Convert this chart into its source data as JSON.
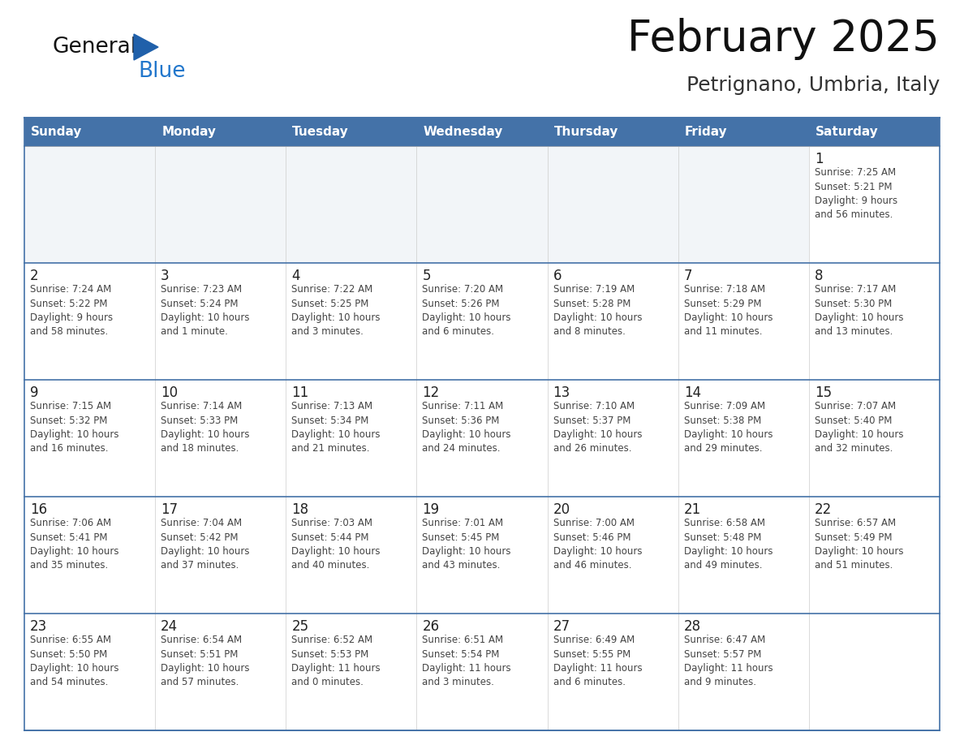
{
  "title": "February 2025",
  "subtitle": "Petrignano, Umbria, Italy",
  "days_of_week": [
    "Sunday",
    "Monday",
    "Tuesday",
    "Wednesday",
    "Thursday",
    "Friday",
    "Saturday"
  ],
  "header_bg": "#4472a8",
  "header_text": "#ffffff",
  "cell_bg": "#ffffff",
  "cell_bg_alt": "#f0f4f8",
  "cell_text": "#333333",
  "border_color": "#4472a8",
  "row_line_color": "#4472a8",
  "day_number_color": "#222222",
  "info_text_color": "#444444",
  "logo_general_color": "#111111",
  "logo_blue_color": "#2277cc",
  "logo_triangle_color": "#2060aa",
  "calendar_data": [
    [
      {
        "day": null,
        "info": null
      },
      {
        "day": null,
        "info": null
      },
      {
        "day": null,
        "info": null
      },
      {
        "day": null,
        "info": null
      },
      {
        "day": null,
        "info": null
      },
      {
        "day": null,
        "info": null
      },
      {
        "day": 1,
        "info": "Sunrise: 7:25 AM\nSunset: 5:21 PM\nDaylight: 9 hours\nand 56 minutes."
      }
    ],
    [
      {
        "day": 2,
        "info": "Sunrise: 7:24 AM\nSunset: 5:22 PM\nDaylight: 9 hours\nand 58 minutes."
      },
      {
        "day": 3,
        "info": "Sunrise: 7:23 AM\nSunset: 5:24 PM\nDaylight: 10 hours\nand 1 minute."
      },
      {
        "day": 4,
        "info": "Sunrise: 7:22 AM\nSunset: 5:25 PM\nDaylight: 10 hours\nand 3 minutes."
      },
      {
        "day": 5,
        "info": "Sunrise: 7:20 AM\nSunset: 5:26 PM\nDaylight: 10 hours\nand 6 minutes."
      },
      {
        "day": 6,
        "info": "Sunrise: 7:19 AM\nSunset: 5:28 PM\nDaylight: 10 hours\nand 8 minutes."
      },
      {
        "day": 7,
        "info": "Sunrise: 7:18 AM\nSunset: 5:29 PM\nDaylight: 10 hours\nand 11 minutes."
      },
      {
        "day": 8,
        "info": "Sunrise: 7:17 AM\nSunset: 5:30 PM\nDaylight: 10 hours\nand 13 minutes."
      }
    ],
    [
      {
        "day": 9,
        "info": "Sunrise: 7:15 AM\nSunset: 5:32 PM\nDaylight: 10 hours\nand 16 minutes."
      },
      {
        "day": 10,
        "info": "Sunrise: 7:14 AM\nSunset: 5:33 PM\nDaylight: 10 hours\nand 18 minutes."
      },
      {
        "day": 11,
        "info": "Sunrise: 7:13 AM\nSunset: 5:34 PM\nDaylight: 10 hours\nand 21 minutes."
      },
      {
        "day": 12,
        "info": "Sunrise: 7:11 AM\nSunset: 5:36 PM\nDaylight: 10 hours\nand 24 minutes."
      },
      {
        "day": 13,
        "info": "Sunrise: 7:10 AM\nSunset: 5:37 PM\nDaylight: 10 hours\nand 26 minutes."
      },
      {
        "day": 14,
        "info": "Sunrise: 7:09 AM\nSunset: 5:38 PM\nDaylight: 10 hours\nand 29 minutes."
      },
      {
        "day": 15,
        "info": "Sunrise: 7:07 AM\nSunset: 5:40 PM\nDaylight: 10 hours\nand 32 minutes."
      }
    ],
    [
      {
        "day": 16,
        "info": "Sunrise: 7:06 AM\nSunset: 5:41 PM\nDaylight: 10 hours\nand 35 minutes."
      },
      {
        "day": 17,
        "info": "Sunrise: 7:04 AM\nSunset: 5:42 PM\nDaylight: 10 hours\nand 37 minutes."
      },
      {
        "day": 18,
        "info": "Sunrise: 7:03 AM\nSunset: 5:44 PM\nDaylight: 10 hours\nand 40 minutes."
      },
      {
        "day": 19,
        "info": "Sunrise: 7:01 AM\nSunset: 5:45 PM\nDaylight: 10 hours\nand 43 minutes."
      },
      {
        "day": 20,
        "info": "Sunrise: 7:00 AM\nSunset: 5:46 PM\nDaylight: 10 hours\nand 46 minutes."
      },
      {
        "day": 21,
        "info": "Sunrise: 6:58 AM\nSunset: 5:48 PM\nDaylight: 10 hours\nand 49 minutes."
      },
      {
        "day": 22,
        "info": "Sunrise: 6:57 AM\nSunset: 5:49 PM\nDaylight: 10 hours\nand 51 minutes."
      }
    ],
    [
      {
        "day": 23,
        "info": "Sunrise: 6:55 AM\nSunset: 5:50 PM\nDaylight: 10 hours\nand 54 minutes."
      },
      {
        "day": 24,
        "info": "Sunrise: 6:54 AM\nSunset: 5:51 PM\nDaylight: 10 hours\nand 57 minutes."
      },
      {
        "day": 25,
        "info": "Sunrise: 6:52 AM\nSunset: 5:53 PM\nDaylight: 11 hours\nand 0 minutes."
      },
      {
        "day": 26,
        "info": "Sunrise: 6:51 AM\nSunset: 5:54 PM\nDaylight: 11 hours\nand 3 minutes."
      },
      {
        "day": 27,
        "info": "Sunrise: 6:49 AM\nSunset: 5:55 PM\nDaylight: 11 hours\nand 6 minutes."
      },
      {
        "day": 28,
        "info": "Sunrise: 6:47 AM\nSunset: 5:57 PM\nDaylight: 11 hours\nand 9 minutes."
      },
      {
        "day": null,
        "info": null
      }
    ]
  ]
}
